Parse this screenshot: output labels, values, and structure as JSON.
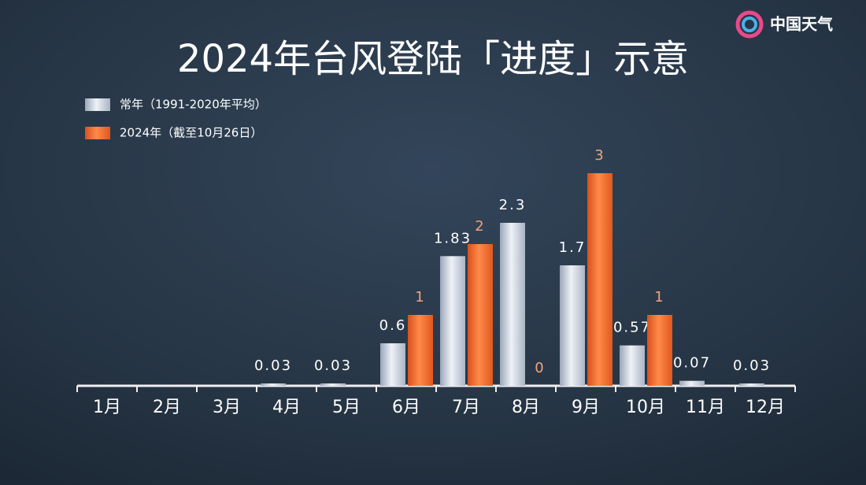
{
  "logo": "中国天气",
  "chart_data": {
    "type": "bar",
    "title": "2024年台风登陆「进度」示意",
    "categories": [
      "1月",
      "2月",
      "3月",
      "4月",
      "5月",
      "6月",
      "7月",
      "8月",
      "9月",
      "10月",
      "11月",
      "12月"
    ],
    "series": [
      {
        "name": "常年（1991-2020年平均）",
        "color": "#c8d0dc",
        "values": [
          null,
          null,
          null,
          0.03,
          0.03,
          0.6,
          1.83,
          2.3,
          1.7,
          0.57,
          0.07,
          0.03
        ]
      },
      {
        "name": "2024年（截至10月26日）",
        "color": "#f26a2e",
        "values": [
          null,
          null,
          null,
          null,
          null,
          1,
          2,
          0,
          3,
          1,
          null,
          null
        ]
      }
    ],
    "legend": "top-left"
  }
}
